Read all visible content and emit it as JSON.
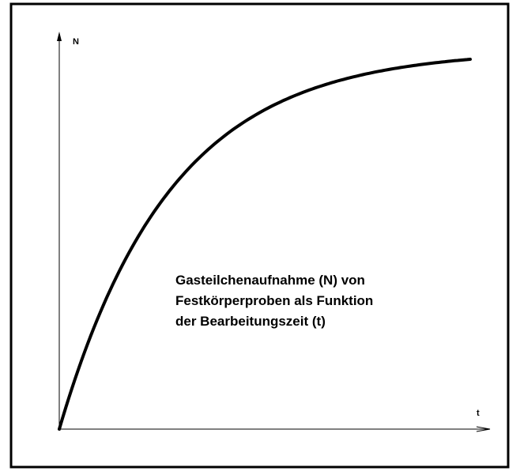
{
  "axes": {
    "y_label": "N",
    "x_label": "t"
  },
  "caption": [
    "Gasteilchenaufnahme  (N)  von",
    "Festkörperproben als Funktion",
    "der Bearbeitungszeit  (t)"
  ]
}
